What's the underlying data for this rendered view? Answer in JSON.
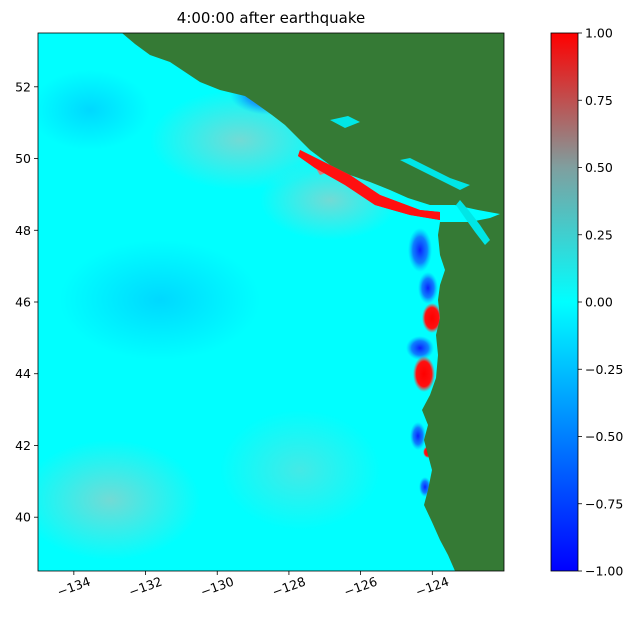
{
  "chart_data": {
    "type": "heatmap",
    "title": "4:00:00 after earthquake",
    "x_ticks": [
      -134,
      -132,
      -130,
      -128,
      -126,
      -124
    ],
    "x_tick_labels": [
      "−134",
      "−132",
      "−130",
      "−128",
      "−126",
      "−124"
    ],
    "y_ticks": [
      40,
      42,
      44,
      46,
      48,
      50,
      52
    ],
    "y_tick_labels": [
      "40",
      "42",
      "44",
      "46",
      "48",
      "50",
      "52"
    ],
    "xlim": [
      -135,
      -122
    ],
    "ylim": [
      38.5,
      53.5
    ],
    "colorbar": {
      "range": [
        -1.0,
        1.0
      ],
      "ticks": [
        -1.0,
        -0.75,
        -0.5,
        -0.25,
        0.0,
        0.25,
        0.5,
        0.75,
        1.0
      ],
      "tick_labels": [
        "−1.00",
        "−0.75",
        "−0.50",
        "−0.25",
        "0.00",
        "0.25",
        "0.50",
        "0.75",
        "1.00"
      ],
      "colors": [
        "#0000ff",
        "#00ffff",
        "#ff0000"
      ]
    },
    "colors": {
      "land": "#357a35",
      "ocean": "#00ffff",
      "positive": "#ff0000",
      "negative": "#0000ff"
    },
    "grid": false
  }
}
